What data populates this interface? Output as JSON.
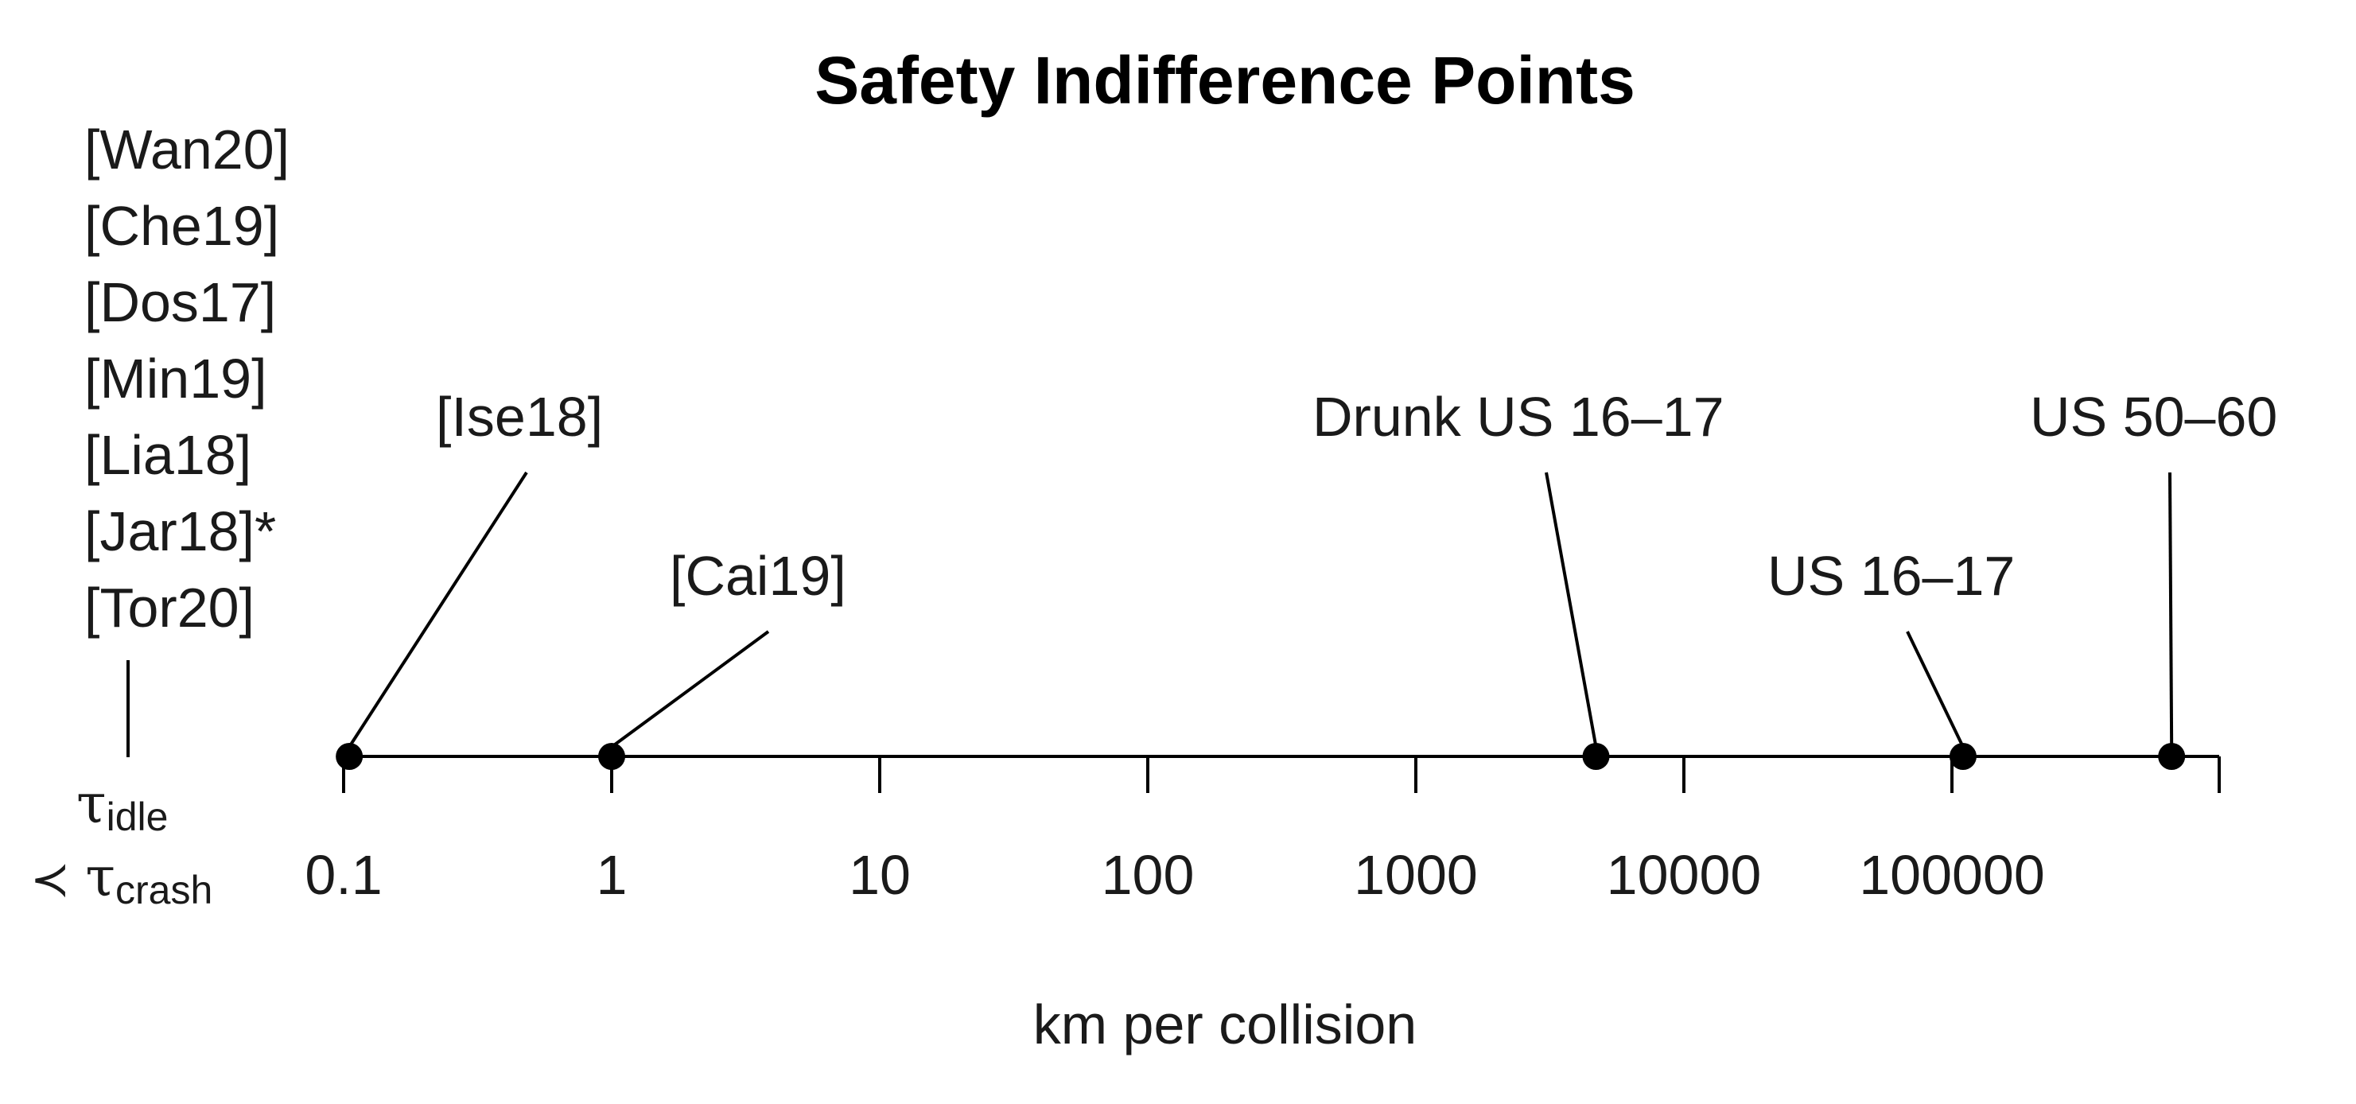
{
  "chart_data": {
    "type": "scatter",
    "title": "Safety Indifference Points",
    "xlabel": "km per collision",
    "x_scale": "log",
    "xlim": [
      0.1,
      1000000
    ],
    "xticks": [
      0.1,
      1,
      10,
      100,
      1000,
      10000,
      100000
    ],
    "xtick_labels": [
      "0.1",
      "1",
      "10",
      "100",
      "1000",
      "10000",
      "100000"
    ],
    "grid": false,
    "legend": "none",
    "colors": {
      "marker": "#000000",
      "axis": "#000000",
      "text": "#1a1a1a"
    },
    "points": [
      {
        "x": 0.105,
        "label": "[Ise18]"
      },
      {
        "x": 1.0,
        "label": "[Cai19]"
      },
      {
        "x": 4700,
        "label": "Drunk US 16–17"
      },
      {
        "x": 110000,
        "label": "US 16–17"
      },
      {
        "x": 660000,
        "label": "US 50–60"
      }
    ],
    "left_group": {
      "labels": [
        "[Wan20]",
        "[Che19]",
        "[Dos17]",
        "[Min19]",
        "[Lia18]",
        "[Jar18]*",
        "[Tor20]"
      ],
      "condition_line1": {
        "symbol": "τ",
        "subscript": "idle"
      },
      "condition_line2": {
        "prefix": "≺",
        "symbol": "τ",
        "subscript": "crash"
      }
    }
  }
}
